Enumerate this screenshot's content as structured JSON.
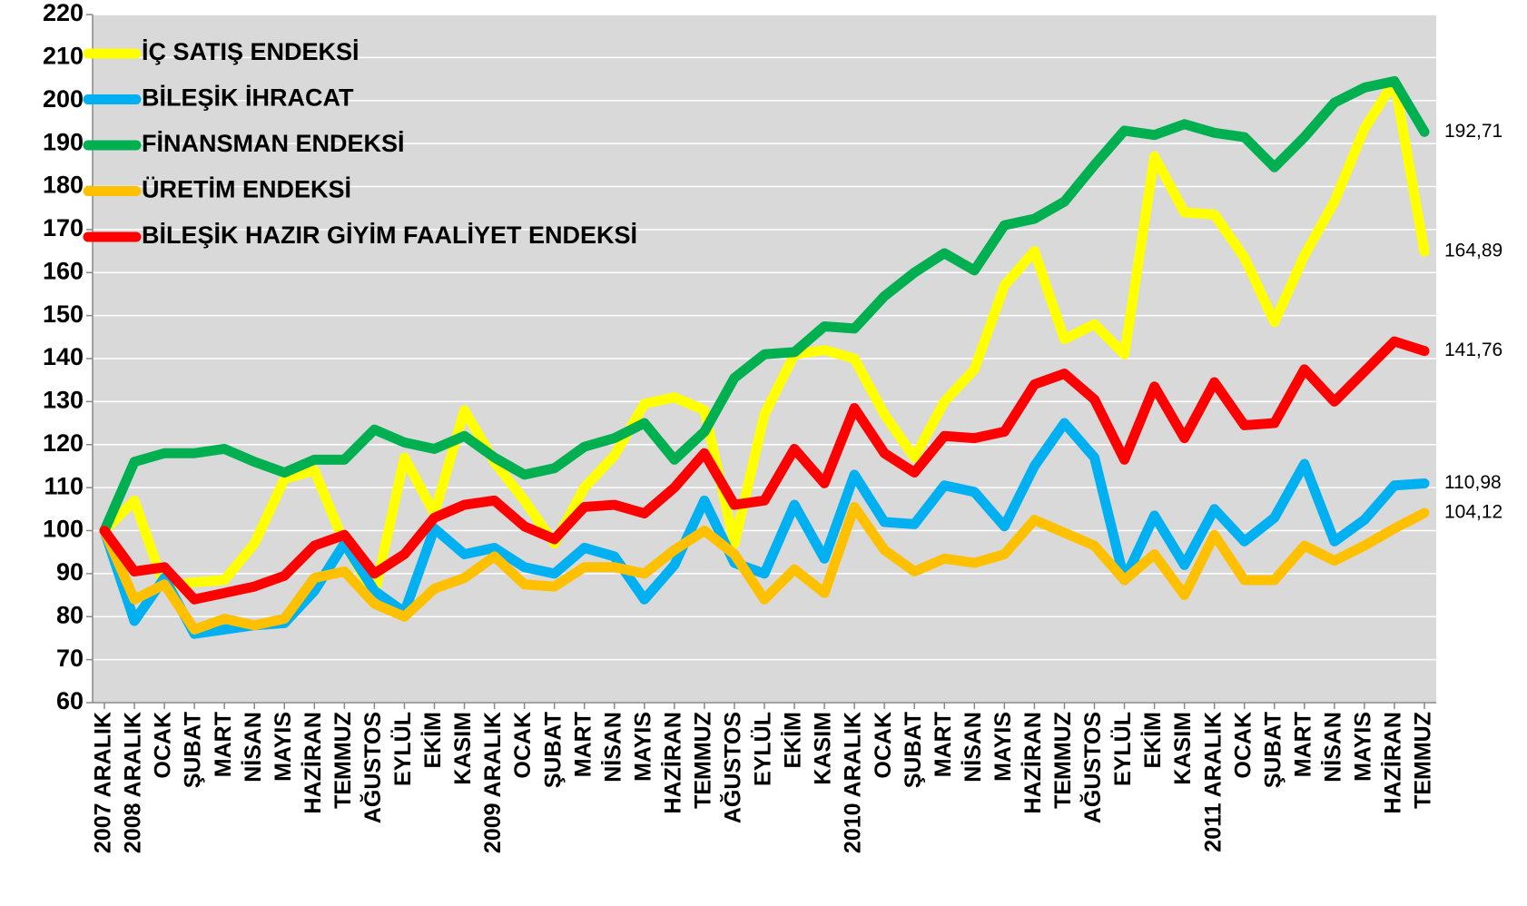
{
  "chart_data": {
    "type": "line",
    "categories": [
      "2007 ARALIK",
      "2008 ARALIK",
      "OCAK",
      "ŞUBAT",
      "MART",
      "NİSAN",
      "MAYIS",
      "HAZİRAN",
      "TEMMUZ",
      "AĞUSTOS",
      "EYLÜL",
      "EKİM",
      "KASIM",
      "2009 ARALIK",
      "OCAK",
      "ŞUBAT",
      "MART",
      "NİSAN",
      "MAYIS",
      "HAZİRAN",
      "TEMMUZ",
      "AĞUSTOS",
      "EYLÜL",
      "EKİM",
      "KASIM",
      "2010 ARALIK",
      "OCAK",
      "ŞUBAT",
      "MART",
      "NİSAN",
      "MAYIS",
      "HAZİRAN",
      "TEMMUZ",
      "AĞUSTOS",
      "EYLÜL",
      "EKİM",
      "KASIM",
      "2011 ARALIK",
      "OCAK",
      "ŞUBAT",
      "MART",
      "NİSAN",
      "MAYIS",
      "HAZİRAN",
      "TEMMUZ"
    ],
    "series": [
      {
        "name": "İÇ SATIŞ ENDEKSİ",
        "color": "#ffff00",
        "values": [
          100,
          107,
          87,
          88,
          88.5,
          97,
          112,
          114,
          97,
          85,
          117,
          104,
          128,
          116,
          107,
          97,
          110,
          117.5,
          129.5,
          131,
          128,
          97,
          127,
          141,
          142,
          140,
          127,
          117,
          130,
          137.5,
          157,
          165,
          144.5,
          148,
          141,
          187,
          174,
          173.5,
          163.5,
          148.5,
          164,
          176.5,
          193.5,
          204.5,
          164.89
        ],
        "value_labels": [
          null,
          null,
          null,
          null,
          null,
          null,
          null,
          null,
          null,
          null,
          null,
          null,
          null,
          null,
          null,
          null,
          null,
          null,
          null,
          null,
          null,
          null,
          null,
          null,
          null,
          null,
          null,
          null,
          null,
          null,
          null,
          null,
          null,
          null,
          null,
          null,
          null,
          null,
          null,
          null,
          null,
          null,
          null,
          null,
          "164,89"
        ]
      },
      {
        "name": "BİLEŞİK İHRACAT",
        "color": "#00b0f0",
        "values": [
          100,
          79,
          89,
          76,
          77,
          78,
          78.5,
          86,
          97,
          86,
          81,
          100.5,
          94.5,
          96,
          91.5,
          90,
          96,
          94,
          84,
          92,
          107,
          92.5,
          90,
          106,
          93.5,
          113,
          102,
          101.5,
          110.5,
          109,
          101,
          115,
          125,
          117,
          88.5,
          103.5,
          92,
          105,
          97.5,
          103,
          115.5,
          97.5,
          102.5,
          110.5,
          110.98
        ],
        "value_labels": [
          null,
          null,
          null,
          null,
          null,
          null,
          null,
          null,
          null,
          null,
          null,
          null,
          null,
          null,
          null,
          null,
          null,
          null,
          null,
          null,
          null,
          null,
          null,
          null,
          null,
          null,
          null,
          null,
          null,
          null,
          null,
          null,
          null,
          null,
          null,
          null,
          null,
          null,
          null,
          null,
          null,
          null,
          null,
          null,
          "110,98"
        ]
      },
      {
        "name": "FİNANSMAN ENDEKSİ",
        "color": "#00b050",
        "values": [
          100,
          116,
          118,
          118,
          119,
          116,
          113.5,
          116.5,
          116.5,
          123.5,
          120.5,
          119,
          122,
          117,
          113,
          114.5,
          119.5,
          121.5,
          125,
          116.5,
          123,
          135.5,
          141,
          141.5,
          147.5,
          147,
          154.5,
          160,
          164.5,
          160.5,
          171,
          172.5,
          176.5,
          185,
          193,
          192,
          194.5,
          192.5,
          191.5,
          184.5,
          191.5,
          199.5,
          203,
          204.5,
          192.71
        ],
        "value_labels": [
          null,
          null,
          null,
          null,
          null,
          null,
          null,
          null,
          null,
          null,
          null,
          null,
          null,
          null,
          null,
          null,
          null,
          null,
          null,
          null,
          null,
          null,
          null,
          null,
          null,
          null,
          null,
          null,
          null,
          null,
          null,
          null,
          null,
          null,
          null,
          null,
          null,
          null,
          null,
          null,
          null,
          null,
          null,
          null,
          "192,71"
        ]
      },
      {
        "name": "ÜRETİM ENDEKSİ",
        "color": "#ffc000",
        "values": [
          100,
          84,
          87.5,
          77,
          79.5,
          78,
          79.5,
          89,
          90.5,
          83,
          80,
          86.5,
          89,
          94,
          87.5,
          87,
          91.5,
          91.5,
          90,
          95.5,
          100,
          94.5,
          84,
          91,
          85.5,
          105.5,
          95.5,
          90.5,
          93.5,
          92.5,
          94.5,
          102.5,
          99.5,
          96.5,
          88.5,
          94.5,
          85,
          99,
          88.5,
          88.5,
          96.5,
          93,
          96.5,
          100.5,
          104.12
        ],
        "value_labels": [
          null,
          null,
          null,
          null,
          null,
          null,
          null,
          null,
          null,
          null,
          null,
          null,
          null,
          null,
          null,
          null,
          null,
          null,
          null,
          null,
          null,
          null,
          null,
          null,
          null,
          null,
          null,
          null,
          null,
          null,
          null,
          null,
          null,
          null,
          null,
          null,
          null,
          null,
          null,
          null,
          null,
          null,
          null,
          null,
          "104,12"
        ]
      },
      {
        "name": "BİLEŞİK HAZIR GİYİM FAALİYET ENDEKSİ",
        "color": "#ff0000",
        "values": [
          100,
          90.5,
          91.5,
          84,
          85.5,
          87,
          89.5,
          96.5,
          99,
          90,
          94.5,
          103,
          106,
          107,
          101,
          98,
          105.5,
          106,
          104,
          110,
          118,
          106,
          107,
          119,
          111,
          128.5,
          118,
          113.5,
          122,
          121.5,
          123,
          134,
          136.5,
          130.5,
          116.5,
          133.5,
          121.5,
          134.5,
          124.5,
          125,
          137.5,
          130,
          137,
          144,
          141.76
        ],
        "value_labels": [
          null,
          null,
          null,
          null,
          null,
          null,
          null,
          null,
          null,
          null,
          null,
          null,
          null,
          null,
          null,
          null,
          null,
          null,
          null,
          null,
          null,
          null,
          null,
          null,
          null,
          null,
          null,
          null,
          null,
          null,
          null,
          null,
          null,
          null,
          null,
          null,
          null,
          null,
          null,
          null,
          null,
          null,
          null,
          null,
          "141,76"
        ]
      }
    ],
    "ylim": [
      60,
      220
    ],
    "yticks": [
      60,
      70,
      80,
      90,
      100,
      110,
      120,
      130,
      140,
      150,
      160,
      170,
      180,
      190,
      200,
      210,
      220
    ],
    "grid": true,
    "legend": "upper left"
  }
}
